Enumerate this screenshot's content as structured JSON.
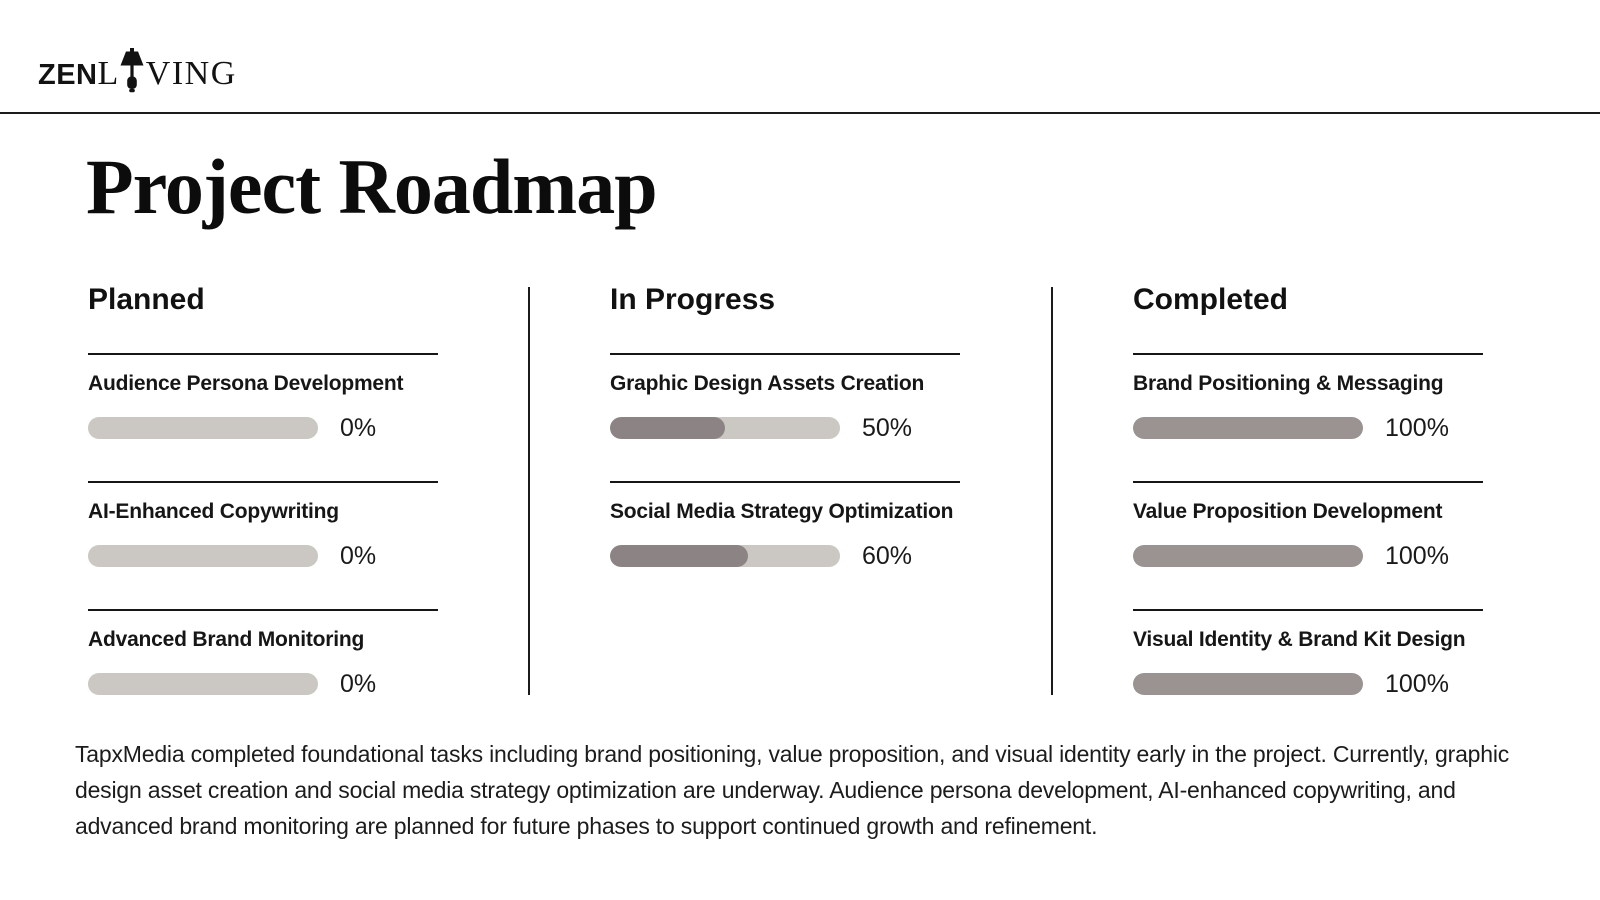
{
  "brand": {
    "logo_prefix": "ZEN",
    "logo_l": "L",
    "logo_rest": "VING",
    "lamp_icon": "table-lamp-icon"
  },
  "page": {
    "title": "Project Roadmap"
  },
  "colors": {
    "text": "#141414",
    "rule": "#1b1b1b",
    "bar_track": "#cbc7c3",
    "bar_fill_partial": "#8c8484",
    "bar_fill_complete": "#9a9391"
  },
  "columns": [
    {
      "header": "Planned",
      "tasks": [
        {
          "title": "Audience Persona Development",
          "percent": 0,
          "percent_label": "0%"
        },
        {
          "title": "AI-Enhanced Copywriting",
          "percent": 0,
          "percent_label": "0%"
        },
        {
          "title": "Advanced Brand Monitoring",
          "percent": 0,
          "percent_label": "0%"
        }
      ]
    },
    {
      "header": "In Progress",
      "tasks": [
        {
          "title": "Graphic Design Assets Creation",
          "percent": 50,
          "percent_label": "50%"
        },
        {
          "title": "Social Media Strategy Optimization",
          "percent": 60,
          "percent_label": "60%"
        }
      ]
    },
    {
      "header": "Completed",
      "tasks": [
        {
          "title": "Brand Positioning & Messaging",
          "percent": 100,
          "percent_label": "100%"
        },
        {
          "title": "Value Proposition Development",
          "percent": 100,
          "percent_label": "100%"
        },
        {
          "title": "Visual Identity & Brand Kit Design",
          "percent": 100,
          "percent_label": "100%"
        }
      ]
    }
  ],
  "summary": {
    "text": "TapxMedia completed foundational tasks including brand positioning, value proposition, and visual identity early in the project. Currently, graphic design asset creation and social media strategy optimization are underway. Audience persona development, AI-enhanced copywriting, and advanced brand monitoring are planned for future phases to support continued growth and refinement."
  }
}
